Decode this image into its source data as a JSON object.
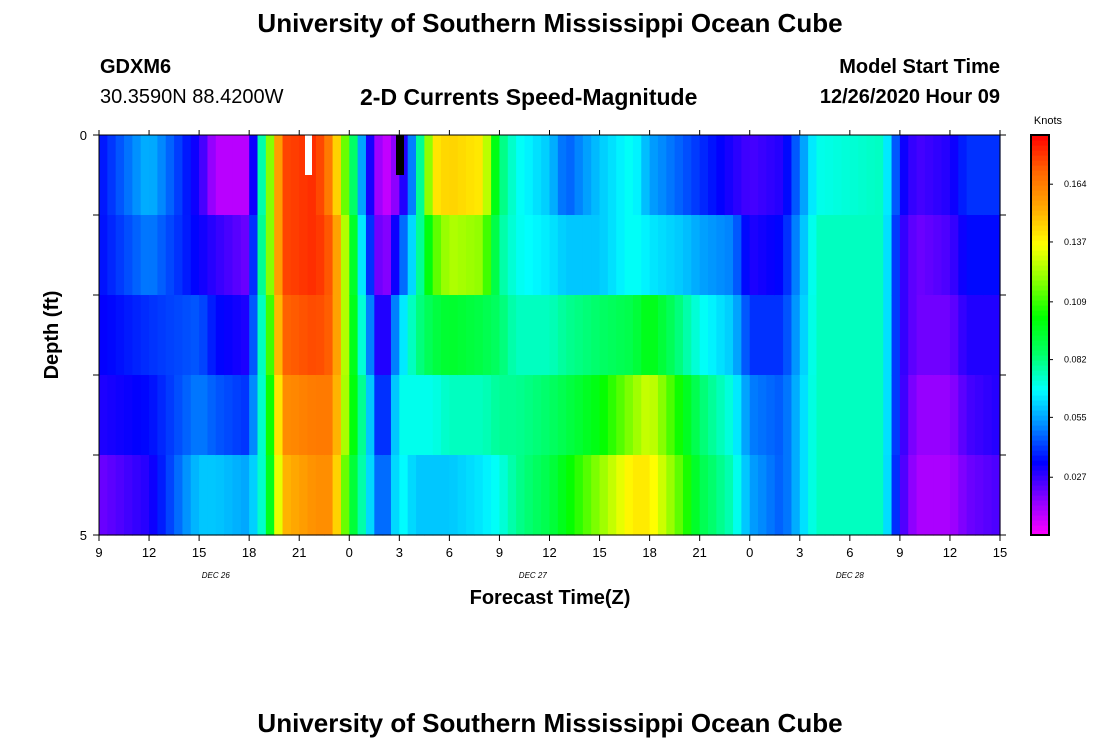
{
  "header": {
    "title": "University of Southern Mississippi Ocean Cube",
    "station": "GDXM6",
    "coords": "30.3590N 88.4200W",
    "subtitle": "2-D Currents Speed-Magnitude",
    "model_start_label": "Model Start Time",
    "model_start_value": "12/26/2020 Hour 09"
  },
  "footer": {
    "title": "University of Southern Mississippi Ocean Cube"
  },
  "chart_data": {
    "type": "heatmap",
    "xlabel": "Forecast Time(Z)",
    "ylabel": "Depth (ft)",
    "x_ticks": [
      "9",
      "12",
      "15",
      "18",
      "21",
      "0",
      "3",
      "6",
      "9",
      "12",
      "15",
      "18",
      "21",
      "0",
      "3",
      "6",
      "9",
      "12",
      "15"
    ],
    "x_start_hour": 9,
    "x_end_hour": 63,
    "date_labels": [
      {
        "text": "DEC  26",
        "hour": 16
      },
      {
        "text": "DEC  27",
        "hour": 35
      },
      {
        "text": "DEC  28",
        "hour": 54
      }
    ],
    "y_tick_labels": [
      {
        "text": "0",
        "value": 0
      },
      {
        "text": "5",
        "value": 5
      }
    ],
    "ylim": [
      0,
      5
    ],
    "colorbar": {
      "title": "Knots",
      "min": 0.0,
      "max": 0.187,
      "ticks": [
        "0.027",
        "0.055",
        "0.082",
        "0.109",
        "0.137",
        "0.164"
      ],
      "tick_values": [
        0.027,
        0.055,
        0.082,
        0.109,
        0.137,
        0.164
      ],
      "colors": [
        "#ff00ff",
        "#8800ff",
        "#0000ff",
        "#0088ff",
        "#00ffff",
        "#00ff66",
        "#00ff00",
        "#88ff00",
        "#ffff00",
        "#ffaa00",
        "#ff6600",
        "#ff0000"
      ]
    },
    "depth_layers": [
      0,
      1,
      2,
      3,
      4,
      5
    ],
    "series": [
      {
        "hour": 9,
        "values": [
          0.035,
          0.035,
          0.033,
          0.03,
          0.02,
          0.015
        ]
      },
      {
        "hour": 12,
        "values": [
          0.058,
          0.05,
          0.04,
          0.035,
          0.03,
          0.025
        ]
      },
      {
        "hour": 15,
        "values": [
          0.03,
          0.033,
          0.045,
          0.05,
          0.06,
          0.065
        ]
      },
      {
        "hour": 16,
        "values": [
          0.01,
          0.028,
          0.035,
          0.045,
          0.06,
          0.07
        ]
      },
      {
        "hour": 18,
        "values": [
          0.01,
          0.02,
          0.03,
          0.04,
          0.055,
          0.07
        ]
      },
      {
        "hour": 19,
        "values": [
          0.1,
          0.1,
          0.09,
          0.085,
          0.08,
          0.08
        ]
      },
      {
        "hour": 20,
        "values": [
          0.175,
          0.175,
          0.17,
          0.16,
          0.15,
          0.14
        ]
      },
      {
        "hour": 22,
        "values": [
          0.18,
          0.18,
          0.175,
          0.165,
          0.16,
          0.15
        ]
      },
      {
        "hour": 23,
        "values": [
          0.16,
          0.17,
          0.17,
          0.165,
          0.16,
          0.15
        ]
      },
      {
        "hour": 24,
        "values": [
          0.1,
          0.11,
          0.11,
          0.11,
          0.1,
          0.1
        ]
      },
      {
        "hour": 25,
        "values": [
          0.04,
          0.05,
          0.06,
          0.07,
          0.07,
          0.075
        ]
      },
      {
        "hour": 26,
        "values": [
          0.005,
          0.01,
          0.02,
          0.03,
          0.04,
          0.05
        ]
      },
      {
        "hour": 27,
        "values": [
          0.02,
          0.04,
          0.06,
          0.07,
          0.07,
          0.07
        ]
      },
      {
        "hour": 28,
        "values": [
          0.06,
          0.07,
          0.08,
          0.07,
          0.06,
          0.055
        ]
      },
      {
        "hour": 29,
        "values": [
          0.14,
          0.11,
          0.09,
          0.07,
          0.06,
          0.055
        ]
      },
      {
        "hour": 30,
        "values": [
          0.145,
          0.125,
          0.095,
          0.075,
          0.06,
          0.055
        ]
      },
      {
        "hour": 32,
        "values": [
          0.14,
          0.12,
          0.09,
          0.075,
          0.065,
          0.05
        ]
      },
      {
        "hour": 33,
        "values": [
          0.085,
          0.08,
          0.085,
          0.08,
          0.07,
          0.05
        ]
      },
      {
        "hour": 34,
        "values": [
          0.07,
          0.07,
          0.075,
          0.08,
          0.08,
          0.065
        ]
      },
      {
        "hour": 36,
        "values": [
          0.06,
          0.065,
          0.075,
          0.085,
          0.09,
          0.1
        ]
      },
      {
        "hour": 37,
        "values": [
          0.045,
          0.06,
          0.08,
          0.09,
          0.1,
          0.12
        ]
      },
      {
        "hour": 39,
        "values": [
          0.06,
          0.06,
          0.085,
          0.1,
          0.12,
          0.14
        ]
      },
      {
        "hour": 41,
        "values": [
          0.07,
          0.07,
          0.09,
          0.12,
          0.14,
          0.15
        ]
      },
      {
        "hour": 42,
        "values": [
          0.055,
          0.065,
          0.1,
          0.13,
          0.14,
          0.15
        ]
      },
      {
        "hour": 44,
        "values": [
          0.045,
          0.06,
          0.08,
          0.1,
          0.11,
          0.12
        ]
      },
      {
        "hour": 45,
        "values": [
          0.04,
          0.055,
          0.07,
          0.085,
          0.09,
          0.1
        ]
      },
      {
        "hour": 47,
        "values": [
          0.03,
          0.05,
          0.06,
          0.07,
          0.075,
          0.08
        ]
      },
      {
        "hour": 48,
        "values": [
          0.025,
          0.03,
          0.04,
          0.05,
          0.055,
          0.06
        ]
      },
      {
        "hour": 50,
        "values": [
          0.03,
          0.035,
          0.04,
          0.045,
          0.045,
          0.05
        ]
      },
      {
        "hour": 52,
        "values": [
          0.07,
          0.075,
          0.075,
          0.075,
          0.075,
          0.075
        ]
      },
      {
        "hour": 56,
        "values": [
          0.075,
          0.075,
          0.075,
          0.075,
          0.075,
          0.075
        ]
      },
      {
        "hour": 57,
        "values": [
          0.035,
          0.03,
          0.03,
          0.03,
          0.028,
          0.025
        ]
      },
      {
        "hour": 58,
        "values": [
          0.025,
          0.02,
          0.02,
          0.015,
          0.012,
          0.01
        ]
      },
      {
        "hour": 60,
        "values": [
          0.03,
          0.025,
          0.02,
          0.015,
          0.012,
          0.012
        ]
      },
      {
        "hour": 61,
        "values": [
          0.04,
          0.035,
          0.03,
          0.025,
          0.02,
          0.02
        ]
      },
      {
        "hour": 63,
        "values": [
          0.04,
          0.035,
          0.03,
          0.03,
          0.025,
          0.025
        ]
      }
    ]
  }
}
